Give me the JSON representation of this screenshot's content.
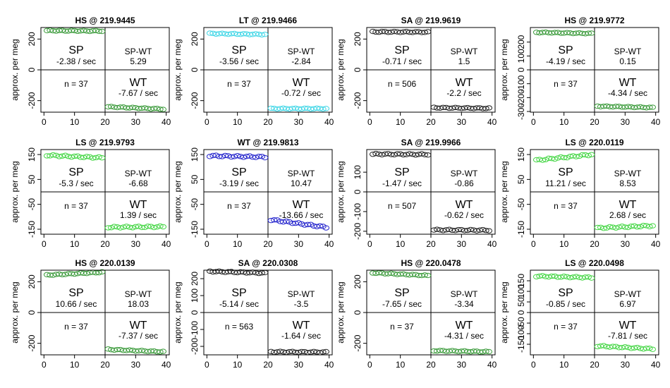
{
  "chart_data": [
    {
      "type": "scatter",
      "title": "HS @ 219.9445",
      "ylabel": "approx. per meg",
      "color": "#3a9a3a",
      "ylim": [
        -275,
        275
      ],
      "yticks": [
        -200,
        0,
        200
      ],
      "xlim": [
        -1,
        41
      ],
      "xticks": [
        0,
        10,
        20,
        30,
        40
      ],
      "sp_stat": "-2.38 / sec",
      "wt_stat": "-7.67 / sec",
      "diff_label": "SP-WT",
      "diff_value": "5.29",
      "n_label": "n = 37",
      "sp_from": 255,
      "sp_to": 252,
      "wt_from": -240,
      "wt_to": -255
    },
    {
      "type": "scatter",
      "title": "LT @ 219.9466",
      "ylabel": "approx. per meg",
      "color": "#3fd6e6",
      "ylim": [
        -275,
        275
      ],
      "yticks": [
        -200,
        0,
        200
      ],
      "xlim": [
        -1,
        41
      ],
      "xticks": [
        0,
        10,
        20,
        30,
        40
      ],
      "sp_stat": "-3.56 / sec",
      "wt_stat": "-0.72 / sec",
      "diff_label": "SP-WT",
      "diff_value": "-2.84",
      "n_label": "n = 37",
      "sp_from": 236,
      "sp_to": 230,
      "wt_from": -252,
      "wt_to": -252
    },
    {
      "type": "scatter",
      "title": "SA @ 219.9619",
      "ylabel": "approx. per meg",
      "color": "#222222",
      "ylim": [
        -275,
        275
      ],
      "yticks": [
        -200,
        0,
        200
      ],
      "xlim": [
        -1,
        41
      ],
      "xticks": [
        0,
        10,
        20,
        30,
        40
      ],
      "sp_stat": "-0.71 / sec",
      "wt_stat": "-2.2 / sec",
      "diff_label": "SP-WT",
      "diff_value": "1.5",
      "n_label": "n = 506",
      "sp_from": 247,
      "sp_to": 245,
      "wt_from": -246,
      "wt_to": -250
    },
    {
      "type": "scatter",
      "title": "HS @ 219.9772",
      "ylabel": "approx. per meg",
      "color": "#3a9a3a",
      "ylim": [
        -305,
        305
      ],
      "yticks": [
        -300,
        -200,
        -100,
        0,
        100,
        200
      ],
      "xlim": [
        -1,
        41
      ],
      "xticks": [
        0,
        10,
        20,
        30,
        40
      ],
      "sp_stat": "-4.19 / sec",
      "wt_stat": "-4.34 / sec",
      "diff_label": "SP-WT",
      "diff_value": "0.15",
      "n_label": "n = 37",
      "sp_from": 270,
      "sp_to": 262,
      "wt_from": -262,
      "wt_to": -272
    },
    {
      "type": "scatter",
      "title": "LS @ 219.9793",
      "ylabel": "approx. per meg",
      "color": "#44d644",
      "ylim": [
        -170,
        170
      ],
      "yticks": [
        -150,
        -50,
        50,
        150
      ],
      "xlim": [
        -1,
        41
      ],
      "xticks": [
        0,
        10,
        20,
        30,
        40
      ],
      "sp_stat": "-5.3 / sec",
      "wt_stat": "1.39 / sec",
      "diff_label": "SP-WT",
      "diff_value": "-6.68",
      "n_label": "n = 37",
      "sp_from": 147,
      "sp_to": 137,
      "wt_from": -142,
      "wt_to": -140
    },
    {
      "type": "scatter",
      "title": "WT @ 219.9813",
      "ylabel": "approx. per meg",
      "color": "#2222cc",
      "ylim": [
        -170,
        170
      ],
      "yticks": [
        -150,
        -50,
        50,
        150
      ],
      "xlim": [
        -1,
        41
      ],
      "xticks": [
        0,
        10,
        20,
        30,
        40
      ],
      "sp_stat": "-3.19 / sec",
      "wt_stat": "-13.66 / sec",
      "diff_label": "SP-WT",
      "diff_value": "10.47",
      "n_label": "n = 37",
      "sp_from": 145,
      "sp_to": 140,
      "wt_from": -112,
      "wt_to": -142
    },
    {
      "type": "scatter",
      "title": "SA @ 219.9966",
      "ylabel": "approx. per meg",
      "color": "#222222",
      "ylim": [
        -215,
        215
      ],
      "yticks": [
        -200,
        -100,
        0,
        100
      ],
      "xlim": [
        -1,
        41
      ],
      "xticks": [
        0,
        10,
        20,
        30,
        40
      ],
      "sp_stat": "-1.47 / sec",
      "wt_stat": "-0.62 / sec",
      "diff_label": "SP-WT",
      "diff_value": "-0.86",
      "n_label": "n = 507",
      "sp_from": 192,
      "sp_to": 190,
      "wt_from": -193,
      "wt_to": -195
    },
    {
      "type": "scatter",
      "title": "LS @ 220.0119",
      "ylabel": "approx. per meg",
      "color": "#44d644",
      "ylim": [
        -170,
        170
      ],
      "yticks": [
        -150,
        -50,
        50,
        150
      ],
      "xlim": [
        -1,
        41
      ],
      "xticks": [
        0,
        10,
        20,
        30,
        40
      ],
      "sp_stat": "11.21 / sec",
      "wt_stat": "2.68 / sec",
      "diff_label": "SP-WT",
      "diff_value": "8.53",
      "n_label": "n = 37",
      "sp_from": 127,
      "sp_to": 150,
      "wt_from": -145,
      "wt_to": -136
    },
    {
      "type": "scatter",
      "title": "HS @ 220.0139",
      "ylabel": "approx. per meg",
      "color": "#3a9a3a",
      "ylim": [
        -275,
        275
      ],
      "yticks": [
        -200,
        0,
        200
      ],
      "xlim": [
        -1,
        41
      ],
      "xticks": [
        0,
        10,
        20,
        30,
        40
      ],
      "sp_stat": "10.66 / sec",
      "wt_stat": "-7.37 / sec",
      "diff_label": "SP-WT",
      "diff_value": "18.03",
      "n_label": "n = 37",
      "sp_from": 243,
      "sp_to": 262,
      "wt_from": -240,
      "wt_to": -255
    },
    {
      "type": "scatter",
      "title": "SA @ 220.0308",
      "ylabel": "approx. per meg",
      "color": "#222222",
      "ylim": [
        -250,
        250
      ],
      "yticks": [
        -200,
        -100,
        0,
        100,
        200
      ],
      "xlim": [
        -1,
        41
      ],
      "xticks": [
        0,
        10,
        20,
        30,
        40
      ],
      "sp_stat": "-5.14 / sec",
      "wt_stat": "-1.64 / sec",
      "diff_label": "SP-WT",
      "diff_value": "-3.5",
      "n_label": "n = 563",
      "sp_from": 243,
      "sp_to": 233,
      "wt_from": -232,
      "wt_to": -234
    },
    {
      "type": "scatter",
      "title": "HS @ 220.0478",
      "ylabel": "approx. per meg",
      "color": "#3a9a3a",
      "ylim": [
        -275,
        275
      ],
      "yticks": [
        -200,
        0,
        200
      ],
      "xlim": [
        -1,
        41
      ],
      "xticks": [
        0,
        10,
        20,
        30,
        40
      ],
      "sp_stat": "-7.65 / sec",
      "wt_stat": "-4.31 / sec",
      "diff_label": "SP-WT",
      "diff_value": "-3.34",
      "n_label": "n = 37",
      "sp_from": 258,
      "sp_to": 240,
      "wt_from": -248,
      "wt_to": -255
    },
    {
      "type": "scatter",
      "title": "LS @ 220.0498",
      "ylabel": "approx. per meg",
      "color": "#44d644",
      "ylim": [
        -200,
        200
      ],
      "yticks": [
        -150,
        -100,
        -50,
        0,
        50,
        100,
        150
      ],
      "xlim": [
        -1,
        41
      ],
      "xticks": [
        0,
        10,
        20,
        30,
        40
      ],
      "sp_stat": "-0.85 / sec",
      "wt_stat": "-7.81 / sec",
      "diff_label": "SP-WT",
      "diff_value": "6.97",
      "n_label": "n = 37",
      "sp_from": 172,
      "sp_to": 165,
      "wt_from": -158,
      "wt_to": -172
    }
  ],
  "quadrant_labels": {
    "sp": "SP",
    "wt": "WT"
  }
}
